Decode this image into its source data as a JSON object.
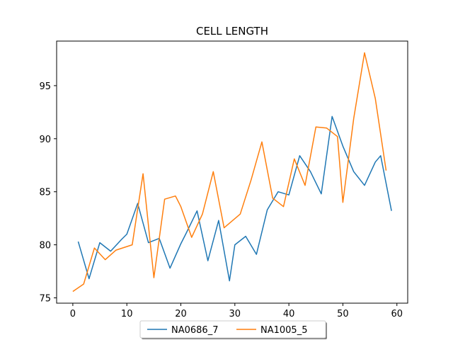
{
  "chart_data": {
    "type": "line",
    "title": "CELL LENGTH",
    "xlabel": "",
    "ylabel": "",
    "xlim": [
      -3,
      62
    ],
    "ylim": [
      74.5,
      99.2
    ],
    "xticks": [
      0,
      10,
      20,
      30,
      40,
      50,
      60
    ],
    "yticks": [
      75,
      80,
      85,
      90,
      95
    ],
    "grid": false,
    "legend_position": "bottom-center",
    "series": [
      {
        "name": "NA0686_7",
        "color": "#1f77b4",
        "x": [
          1,
          3,
          5,
          7,
          9,
          10,
          12,
          14,
          16,
          18,
          20,
          21,
          23,
          25,
          27,
          29,
          30,
          32,
          34,
          36,
          38,
          40,
          42,
          44,
          46,
          48,
          50,
          52,
          54,
          56,
          57,
          59
        ],
        "y": [
          80.3,
          76.8,
          80.2,
          79.4,
          80.5,
          81.0,
          83.9,
          80.2,
          80.6,
          77.8,
          80.1,
          81.1,
          83.2,
          78.5,
          82.3,
          76.6,
          80.0,
          80.8,
          79.1,
          83.3,
          85.0,
          84.7,
          88.4,
          86.9,
          84.8,
          92.1,
          89.3,
          86.9,
          85.6,
          87.8,
          88.4,
          83.2
        ]
      },
      {
        "name": "NA1005_5",
        "color": "#ff7f0e",
        "x": [
          0,
          2,
          4,
          6,
          8,
          11,
          13,
          15,
          17,
          19,
          20,
          22,
          24,
          26,
          28,
          31,
          33,
          35,
          37,
          39,
          41,
          43,
          45,
          47,
          49,
          50,
          52,
          54,
          56,
          58
        ],
        "y": [
          75.6,
          76.3,
          79.7,
          78.6,
          79.5,
          80.0,
          86.7,
          76.9,
          84.3,
          84.6,
          83.6,
          80.7,
          82.9,
          86.9,
          81.6,
          82.9,
          86.1,
          89.7,
          84.4,
          83.6,
          88.1,
          85.6,
          91.1,
          91.0,
          90.2,
          84.0,
          91.9,
          98.1,
          93.8,
          87.0
        ]
      }
    ]
  }
}
